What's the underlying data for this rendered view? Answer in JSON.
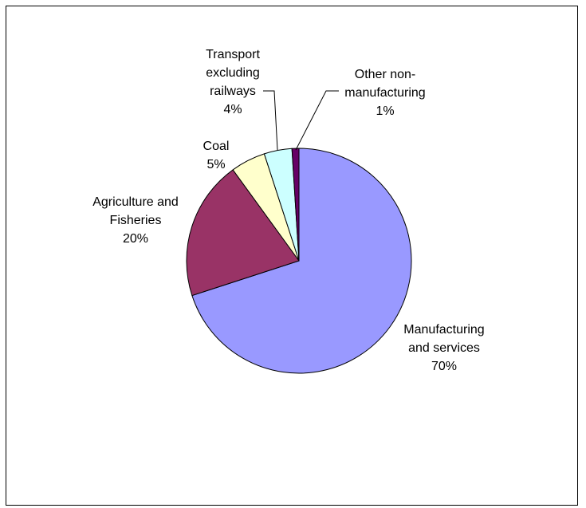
{
  "chart_data": {
    "type": "pie",
    "title": "",
    "slices": [
      {
        "label": [
          "Manufacturing",
          "and services"
        ],
        "value": 70,
        "percent_label": "70%",
        "color": "#9999FF"
      },
      {
        "label": [
          "Agriculture and",
          "Fisheries"
        ],
        "value": 20,
        "percent_label": "20%",
        "color": "#993366"
      },
      {
        "label": [
          "Coal"
        ],
        "value": 5,
        "percent_label": "5%",
        "color": "#FFFFCC"
      },
      {
        "label": [
          "Transport",
          "excluding",
          "railways"
        ],
        "value": 4,
        "percent_label": "4%",
        "color": "#CCFFFF"
      },
      {
        "label": [
          "Other non-",
          "manufacturing"
        ],
        "value": 1,
        "percent_label": "1%",
        "color": "#660066"
      }
    ],
    "legend": "none",
    "start_angle_deg": 0,
    "direction": "clockwise"
  }
}
